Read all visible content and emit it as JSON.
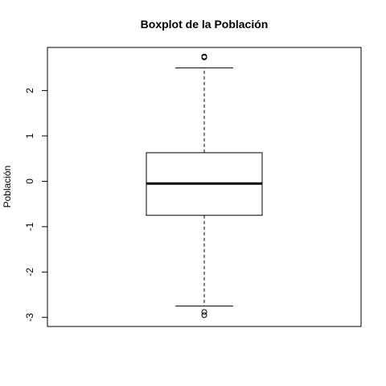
{
  "chart_data": {
    "type": "boxplot",
    "title": "Boxplot de la Población",
    "xlabel": "",
    "ylabel": "Población",
    "ylim": [
      -3.2,
      2.95
    ],
    "yticks": [
      -3,
      -2,
      -1,
      0,
      1,
      2
    ],
    "ytick_labels": [
      "-3",
      "-2",
      "-1",
      "0",
      "1",
      "2"
    ],
    "grid": false,
    "box": {
      "whisker_low": -2.75,
      "q1": -0.75,
      "median": -0.05,
      "q3": 0.63,
      "whisker_high": 2.5
    },
    "outliers": [
      2.75,
      2.73,
      -2.88,
      -2.95
    ]
  }
}
